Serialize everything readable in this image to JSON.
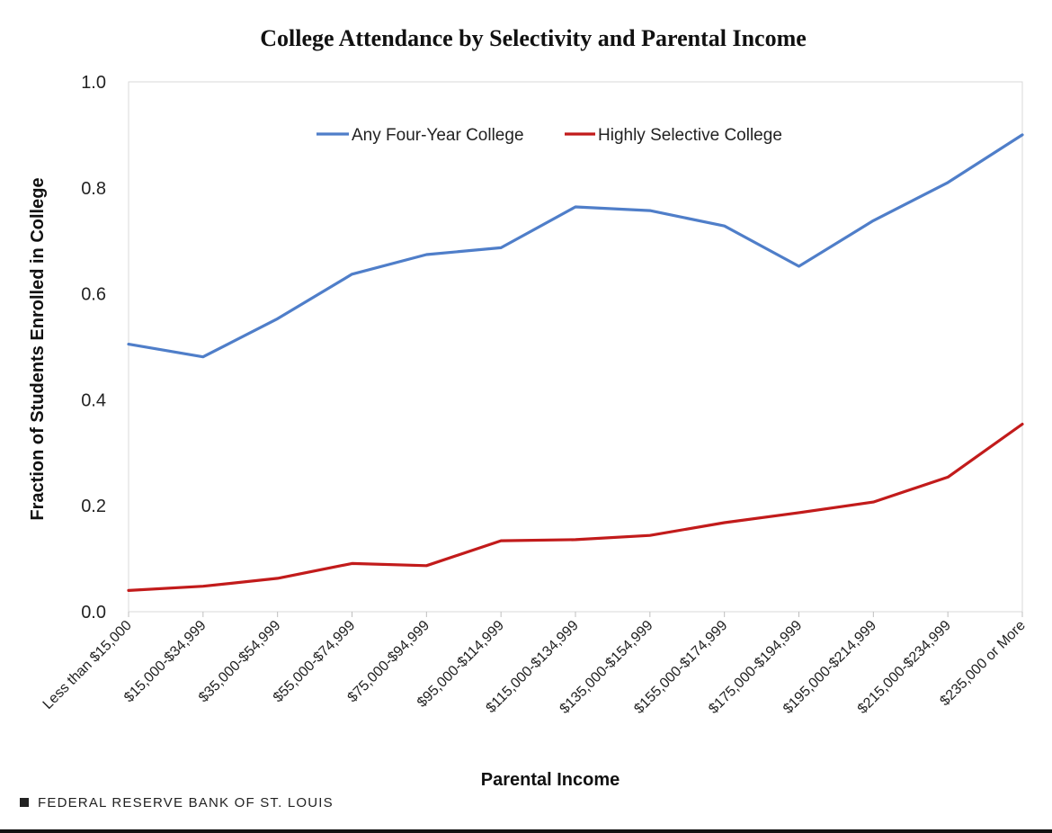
{
  "chart_data": {
    "type": "line",
    "title": "College Attendance by Selectivity and Parental Income",
    "xlabel": "Parental Income",
    "ylabel": "Fraction of Students Enrolled in College",
    "categories": [
      "Less than $15,000",
      "$15,000-$34,999",
      "$35,000-$54,999",
      "$55,000-$74,999",
      "$75,000-$94,999",
      "$95,000-$114,999",
      "$115,000-$134,999",
      "$135,000-$154,999",
      "$155,000-$174,999",
      "$175,000-$194,999",
      "$195,000-$214,999",
      "$215,000-$234,999",
      "$235,000 or More"
    ],
    "series": [
      {
        "name": "Any Four-Year College",
        "color": "#4f7ec9",
        "values": [
          0.505,
          0.481,
          0.553,
          0.637,
          0.674,
          0.687,
          0.764,
          0.757,
          0.728,
          0.652,
          0.738,
          0.81,
          0.9
        ]
      },
      {
        "name": "Highly Selective College",
        "color": "#c21b1b",
        "values": [
          0.04,
          0.048,
          0.063,
          0.091,
          0.087,
          0.134,
          0.136,
          0.144,
          0.168,
          0.187,
          0.207,
          0.254,
          0.354
        ]
      }
    ],
    "ylim": [
      0,
      1.0
    ],
    "yticks": [
      "0.0",
      "0.2",
      "0.4",
      "0.6",
      "0.8",
      "1.0"
    ],
    "ytick_values": [
      0,
      0.2,
      0.4,
      0.6,
      0.8,
      1.0
    ],
    "grid": false,
    "legend": "top-center"
  },
  "footer": {
    "source": "FEDERAL RESERVE BANK OF ST. LOUIS"
  }
}
